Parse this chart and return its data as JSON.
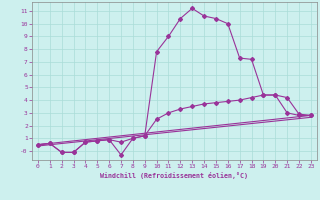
{
  "xlabel": "Windchill (Refroidissement éolien,°C)",
  "background_color": "#cdf0ee",
  "grid_color": "#aaddd8",
  "line_color": "#993399",
  "xlim": [
    -0.5,
    23.5
  ],
  "ylim": [
    -0.7,
    11.7
  ],
  "xticks": [
    0,
    1,
    2,
    3,
    4,
    5,
    6,
    7,
    8,
    9,
    10,
    11,
    12,
    13,
    14,
    15,
    16,
    17,
    18,
    19,
    20,
    21,
    22,
    23
  ],
  "yticks": [
    0,
    1,
    2,
    3,
    4,
    5,
    6,
    7,
    8,
    9,
    10,
    11
  ],
  "line1_x": [
    0,
    1,
    2,
    3,
    4,
    5,
    6,
    7,
    8,
    9,
    10,
    11,
    12,
    13,
    14,
    15,
    16,
    17,
    18,
    19,
    20,
    21,
    22,
    23
  ],
  "line1_y": [
    0.5,
    0.6,
    -0.1,
    -0.1,
    0.7,
    0.8,
    0.9,
    0.7,
    1.0,
    1.2,
    7.8,
    9.0,
    10.4,
    11.2,
    10.6,
    10.4,
    10.0,
    7.3,
    7.2,
    4.4,
    4.4,
    3.0,
    2.8,
    2.8
  ],
  "line2_x": [
    0,
    1,
    2,
    3,
    4,
    5,
    6,
    7,
    8,
    9,
    10,
    11,
    12,
    13,
    14,
    15,
    16,
    17,
    18,
    19,
    20,
    21,
    22,
    23
  ],
  "line2_y": [
    0.5,
    0.6,
    -0.1,
    -0.1,
    0.7,
    0.8,
    0.9,
    -0.3,
    1.0,
    1.2,
    2.5,
    3.0,
    3.3,
    3.5,
    3.7,
    3.8,
    3.9,
    4.0,
    4.2,
    4.4,
    4.4,
    4.2,
    2.9,
    2.8
  ],
  "line3_y_start": 0.5,
  "line3_y_end": 2.8,
  "line4_y_start": 0.4,
  "line4_y_end": 2.65
}
